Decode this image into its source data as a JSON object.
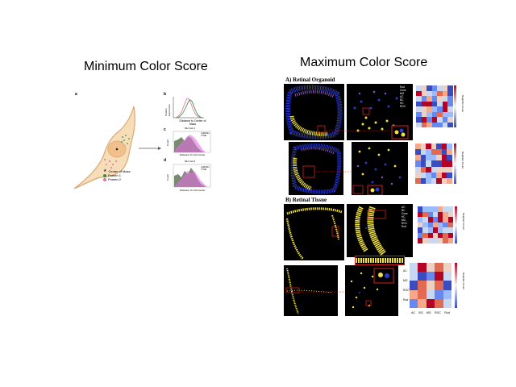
{
  "titles": {
    "left": "Minimum Color Score",
    "right": "Maximum Color Score"
  },
  "left_figure": {
    "panel_a": "a",
    "panel_b": "b",
    "panel_c": "c",
    "panel_d": "d",
    "legend": [
      "Center of Mass",
      "Protein 1",
      "Protein 2"
    ],
    "b_ylabel": "Protein Expression",
    "b_xlabel": "Distance to Center of Mass",
    "c_xlabel": "Distance To Cell Center",
    "c_ylabel": "Count",
    "c_title": "MH Cell 1",
    "d_xlabel": "Distance To Cell Center",
    "d_ylabel": "Count",
    "d_title": "MH Cell 2",
    "legend_small": [
      "mtMASH",
      "T7SEI"
    ]
  },
  "right_figure": {
    "section_a": "A) Retinal Organoid",
    "section_b": "B) Retinal Tissue",
    "organoid_legend": [
      "Rod",
      "Cone",
      "MG",
      "AC",
      "BC",
      "HC",
      "RGC"
    ],
    "tissue_legend": [
      "AC",
      "BC",
      "Cone",
      "HC",
      "MG",
      "RGC",
      "Rod"
    ],
    "bottom_axis": [
      "AC",
      "BG",
      "MG",
      "RGC",
      "Rod"
    ],
    "bottom_y": [
      "AC",
      "MG",
      "RGC",
      "Rod"
    ],
    "colorbar_label": "Neighbor Count",
    "colors": {
      "yellow": "#f2e33a",
      "blue": "#2b3bd0",
      "purple": "#8a55c8",
      "red": "#d42020",
      "heat_red": "#b40426",
      "heat_blue": "#3b4cc0"
    }
  }
}
